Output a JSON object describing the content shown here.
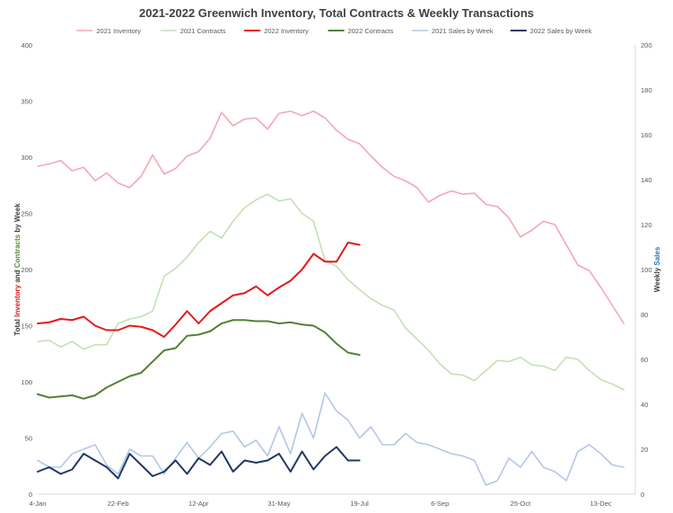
{
  "chart_data": {
    "type": "line",
    "title": "2021-2022 Greenwich Inventory, Total Contracts & Weekly Transactions",
    "ylabel_left_parts": [
      {
        "text": "Total ",
        "color": "#404040"
      },
      {
        "text": "Inventory",
        "color": "#e31a1c"
      },
      {
        "text": " and ",
        "color": "#404040"
      },
      {
        "text": "Contracts",
        "color": "#5a8a3a"
      },
      {
        "text": " by Week",
        "color": "#404040"
      }
    ],
    "ylabel_right_parts": [
      {
        "text": "Weekly ",
        "color": "#404040"
      },
      {
        "text": "Sales",
        "color": "#2e75b6"
      }
    ],
    "ylim_left": [
      0,
      400
    ],
    "ylim_right": [
      0,
      200
    ],
    "yticks_left": [
      0,
      50,
      100,
      150,
      200,
      250,
      300,
      350,
      400
    ],
    "yticks_right": [
      0,
      20,
      40,
      60,
      80,
      100,
      120,
      140,
      160,
      180,
      200
    ],
    "xlim": [
      1,
      53
    ],
    "xticks": [
      {
        "week": 1,
        "label": "4-Jan"
      },
      {
        "week": 8,
        "label": "22-Feb"
      },
      {
        "week": 15,
        "label": "12-Apr"
      },
      {
        "week": 22,
        "label": "31-May"
      },
      {
        "week": 29,
        "label": "19-Jul"
      },
      {
        "week": 36,
        "label": "6-Sep"
      },
      {
        "week": 43,
        "label": "25-Oct"
      },
      {
        "week": 50,
        "label": "13-Dec"
      }
    ],
    "legend_position": "top",
    "grid": false,
    "series": [
      {
        "name": "2021 Inventory",
        "color": "#f4a7b4",
        "axis": "left",
        "stroke_width": 1.6,
        "values": [
          292,
          294,
          297,
          288,
          291,
          279,
          286,
          277,
          273,
          283,
          302,
          285,
          290,
          301,
          305,
          317,
          340,
          328,
          334,
          335,
          325,
          339,
          341,
          337,
          341,
          335,
          324,
          316,
          312,
          301,
          291,
          283,
          279,
          273,
          260,
          266,
          270,
          267,
          268,
          258,
          256,
          246,
          229,
          235,
          243,
          240,
          222,
          204,
          199,
          184,
          168,
          152
        ]
      },
      {
        "name": "2021 Contracts",
        "color": "#c5e0b4",
        "axis": "left",
        "stroke_width": 1.6,
        "values": [
          136,
          137,
          131,
          136,
          129,
          133,
          133,
          152,
          156,
          158,
          163,
          194,
          201,
          211,
          224,
          234,
          228,
          243,
          255,
          262,
          267,
          261,
          263,
          250,
          243,
          208,
          203,
          191,
          182,
          174,
          168,
          164,
          148,
          138,
          128,
          116,
          107,
          106,
          101,
          110,
          119,
          118,
          122,
          115,
          114,
          110,
          122,
          120,
          110,
          102,
          98,
          93
        ]
      },
      {
        "name": "2022 Inventory",
        "color": "#e31a1c",
        "axis": "left",
        "stroke_width": 2,
        "values": [
          152,
          153,
          156,
          155,
          158,
          150,
          146,
          146,
          150,
          149,
          146,
          140,
          151,
          163,
          152,
          163,
          170,
          177,
          179,
          185,
          177,
          184,
          190,
          200,
          214,
          207,
          207,
          224,
          222
        ]
      },
      {
        "name": "2022 Contracts",
        "color": "#548235",
        "axis": "left",
        "stroke_width": 2,
        "values": [
          89,
          86,
          87,
          88,
          85,
          88,
          95,
          100,
          105,
          108,
          118,
          128,
          130,
          141,
          142,
          145,
          152,
          155,
          155,
          154,
          154,
          152,
          153,
          151,
          150,
          144,
          134,
          126,
          124
        ]
      },
      {
        "name": "2021 Sales by Week",
        "color": "#b4c7e7",
        "axis": "right",
        "stroke_width": 1.6,
        "values": [
          15,
          12,
          12,
          18,
          20,
          22,
          13,
          9,
          20,
          17,
          17,
          9,
          16,
          23,
          16,
          21,
          27,
          28,
          21,
          24,
          17,
          30,
          18,
          36,
          25,
          45,
          37,
          33,
          25,
          30,
          22,
          22,
          27,
          23,
          22,
          20,
          18,
          17,
          15,
          4,
          6,
          16,
          12,
          19,
          12,
          10,
          6,
          19,
          22,
          18,
          13,
          12
        ]
      },
      {
        "name": "2022 Sales by Week",
        "color": "#203864",
        "axis": "right",
        "stroke_width": 2,
        "values": [
          10,
          12,
          9,
          11,
          18,
          15,
          12,
          7,
          18,
          13,
          8,
          10,
          15,
          9,
          16,
          13,
          19,
          10,
          15,
          14,
          15,
          18,
          10,
          19,
          11,
          17,
          21,
          15,
          15
        ]
      }
    ]
  }
}
